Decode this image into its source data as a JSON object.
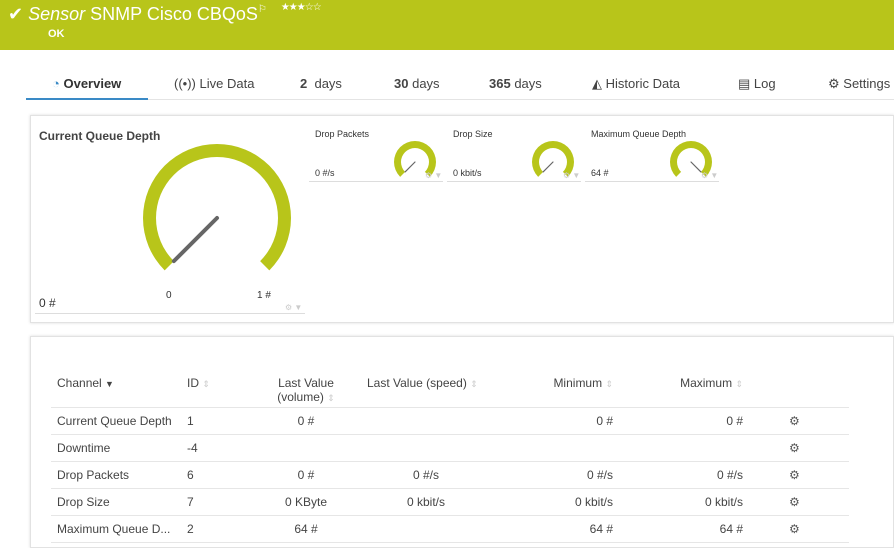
{
  "header": {
    "prefix": "Sensor",
    "title": "SNMP Cisco CBQoS",
    "status": "OK",
    "stars": "★★★☆☆",
    "rating": 3,
    "color": "#b8c51a"
  },
  "tabs": [
    {
      "label": "Overview",
      "icon": "gauge-icon"
    },
    {
      "label": "Live Data",
      "icon": "broadcast-icon"
    },
    {
      "num": "2",
      "label": "days"
    },
    {
      "num": "30",
      "label": "days"
    },
    {
      "num": "365",
      "label": "days"
    },
    {
      "label": "Historic Data",
      "icon": "area-chart-icon"
    },
    {
      "label": "Log",
      "icon": "log-icon"
    },
    {
      "label": "Settings",
      "icon": "gear-icon"
    }
  ],
  "gauges": {
    "main": {
      "title": "Current Queue Depth",
      "value": "0 #",
      "min": "0",
      "max": "1 #",
      "fraction": 0
    },
    "small": [
      {
        "title": "Drop Packets",
        "value": "0 #/s",
        "fraction": 0
      },
      {
        "title": "Drop Size",
        "value": "0 kbit/s",
        "fraction": 0
      },
      {
        "title": "Maximum Queue Depth",
        "value": "64 #",
        "fraction": 1
      }
    ]
  },
  "table": {
    "headers": [
      "Channel",
      "ID",
      "Last Value",
      "(volume)",
      "Last Value (speed)",
      "Minimum",
      "Maximum"
    ],
    "rows": [
      [
        "Current Queue Depth",
        "1",
        "0 #",
        "",
        "0 #",
        "0 #"
      ],
      [
        "Downtime",
        "-4",
        "",
        "",
        "",
        ""
      ],
      [
        "Drop Packets",
        "6",
        "0 #",
        "0 #/s",
        "0 #/s",
        "0 #/s"
      ],
      [
        "Drop Size",
        "7",
        "0 KByte",
        "0 kbit/s",
        "0 kbit/s",
        "0 kbit/s"
      ],
      [
        "Maximum Queue D...",
        "2",
        "64 #",
        "",
        "64 #",
        "64 #"
      ]
    ]
  }
}
